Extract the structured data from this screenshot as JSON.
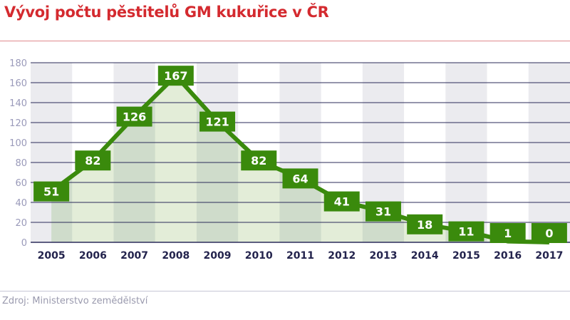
{
  "title": "Vývoj počtu pěstitelů GM kukuřice v ČR",
  "source": "Zdroj: Ministerstvo zemědělství",
  "colors": {
    "title": "#d42a2f",
    "line": "#3a8a0c",
    "area": "#e3edd8",
    "area_shaded": "#cfdccb",
    "column_shade": "#ebebef",
    "grid": "#2b2b5a",
    "axis_text": "#9a9aba",
    "year_text": "#23234d"
  },
  "chart_data": {
    "type": "line",
    "title": "Vývoj počtu pěstitelů GM kukuřice v ČR",
    "xlabel": "",
    "ylabel": "",
    "categories": [
      "2005",
      "2006",
      "2007",
      "2008",
      "2009",
      "2010",
      "2011",
      "2012",
      "2013",
      "2014",
      "2015",
      "2016",
      "2017"
    ],
    "values": [
      51,
      82,
      126,
      167,
      121,
      82,
      64,
      41,
      31,
      18,
      11,
      1,
      0
    ],
    "ylim": [
      0,
      180
    ],
    "yticks": [
      0,
      20,
      40,
      60,
      80,
      100,
      120,
      140,
      160,
      180
    ],
    "grid": true,
    "data_labels": true,
    "area_fill": true
  }
}
